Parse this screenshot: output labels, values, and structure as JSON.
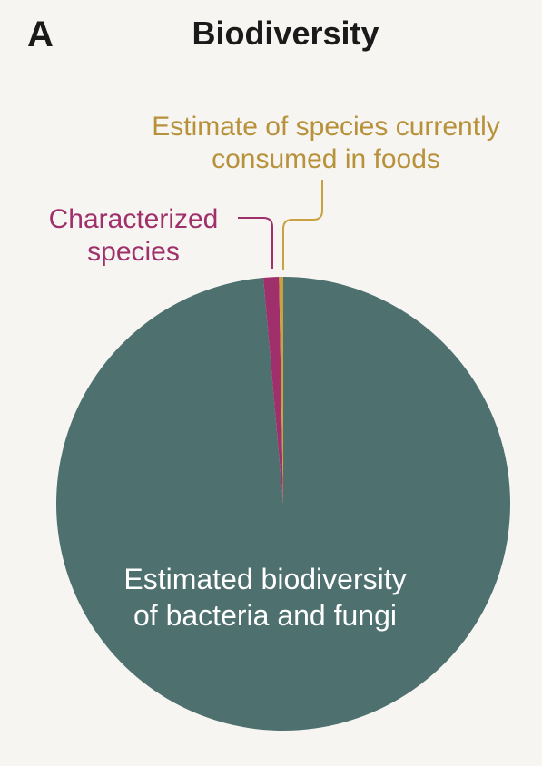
{
  "panel_label": "A",
  "chart_data": {
    "type": "pie",
    "title": "Biodiversity",
    "slices": [
      {
        "label": "Estimated biodiversity of bacteria and fungi",
        "label_lines": [
          "Estimated biodiversity",
          "of bacteria and fungi"
        ],
        "value": 98.6,
        "color": "#4e706e"
      },
      {
        "label": "Characterized species",
        "label_lines": [
          "Characterized",
          "species"
        ],
        "value": 1.1,
        "color": "#a0306c"
      },
      {
        "label": "Estimate of species currently consumed in foods",
        "label_lines": [
          "Estimate of species currently",
          "consumed in foods"
        ],
        "value": 0.3,
        "color": "#c9a23f"
      }
    ]
  }
}
